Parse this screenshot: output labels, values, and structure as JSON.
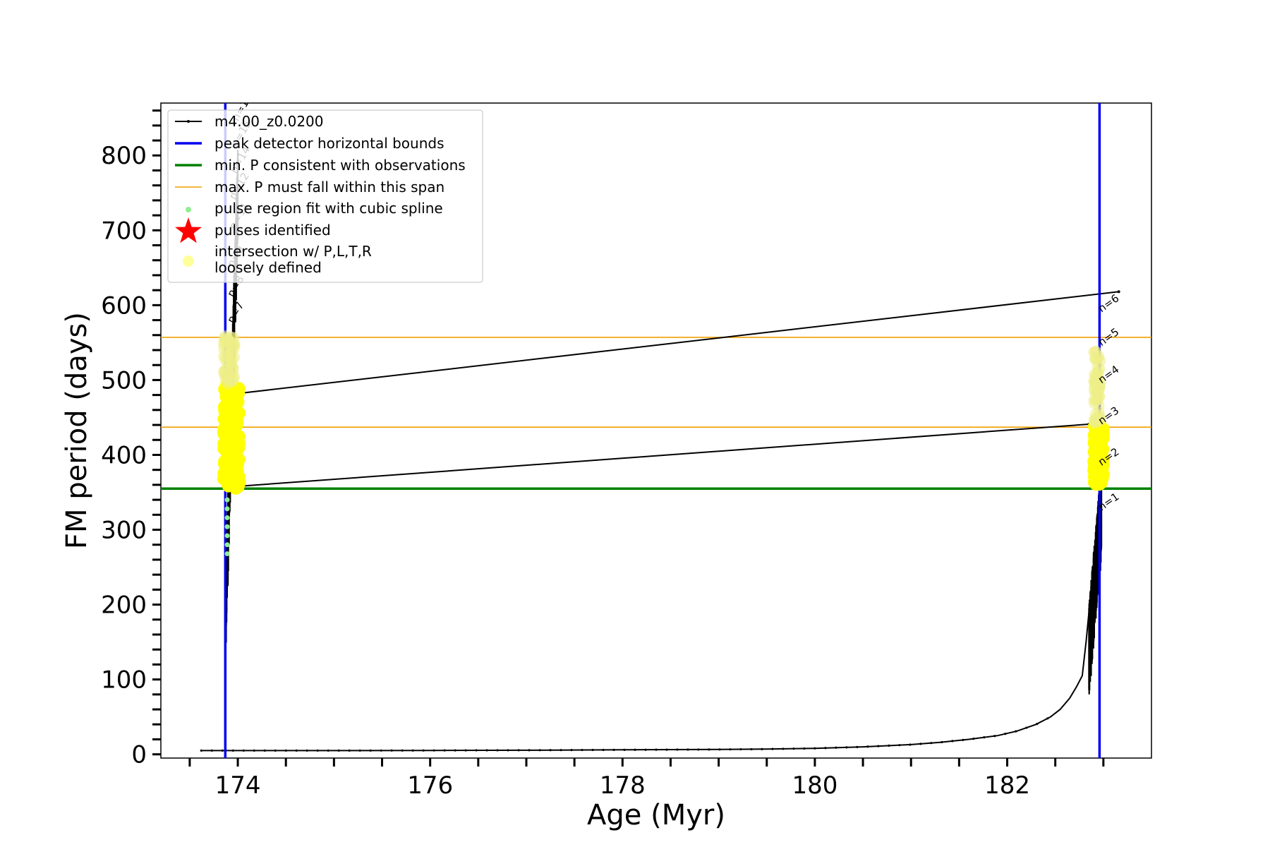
{
  "chart_data": {
    "type": "line",
    "xlabel": "Age (Myr)",
    "ylabel": "FM period (days)",
    "xlim": [
      173.2,
      183.5
    ],
    "ylim": [
      -5,
      870
    ],
    "xticks": [
      174,
      176,
      178,
      180,
      182
    ],
    "xtick_labels": [
      "174",
      "176",
      "178",
      "180",
      "182"
    ],
    "yticks": [
      0,
      100,
      200,
      300,
      400,
      500,
      600,
      700,
      800
    ],
    "ytick_labels": [
      "0",
      "100",
      "200",
      "300",
      "400",
      "500",
      "600",
      "700",
      "800"
    ],
    "legend_position": "top-left",
    "legend": [
      {
        "label": "m4.00_z0.0200",
        "marker": "line-dot",
        "color": "#000000"
      },
      {
        "label": "peak detector horizontal bounds",
        "marker": "line",
        "color": "#0000ee"
      },
      {
        "label": "min. P consistent with observations",
        "marker": "line",
        "color": "#008000"
      },
      {
        "label": "max. P must fall within this span",
        "marker": "thin-line",
        "color": "#f0a000"
      },
      {
        "label": "pulse region fit with cubic spline",
        "marker": "dot",
        "color": "#90ee90"
      },
      {
        "label": "pulses identified",
        "marker": "star",
        "color": "#ff0000"
      },
      {
        "label": "intersection w/ P,L,T,R",
        "label2": "loosely defined",
        "marker": "circle",
        "color": "#ffff99"
      }
    ],
    "series": [
      {
        "name": "m4.00_z0.0200",
        "color": "#000000",
        "x": [
          173.62,
          174.0,
          175.0,
          176.0,
          177.0,
          178.0,
          179.0,
          179.5,
          180.0,
          180.5,
          181.0,
          181.3,
          181.6,
          181.9,
          182.1,
          182.3,
          182.45,
          182.55,
          182.65,
          182.72,
          182.78,
          182.82,
          182.85
        ],
        "y": [
          5,
          5,
          5,
          5.2,
          5.5,
          6,
          6.5,
          7,
          8,
          10,
          13,
          16,
          20,
          25,
          31,
          40,
          50,
          60,
          75,
          90,
          105,
          150,
          190
        ]
      },
      {
        "name": "pulse-connectors",
        "color": "#000000",
        "segments": [
          {
            "x": [
              174.0,
              182.85
            ],
            "y": [
              358,
              441
            ]
          },
          {
            "x": [
              174.0,
              183.16
            ],
            "y": [
              482,
              618
            ]
          }
        ]
      }
    ],
    "vertical_lines": [
      {
        "x": 173.87,
        "color": "#0000ee",
        "name": "peak detector horizontal bounds"
      },
      {
        "x": 182.96,
        "color": "#0000ee",
        "name": "peak detector horizontal bounds"
      }
    ],
    "horizontal_lines": [
      {
        "y": 355,
        "color": "#008000",
        "name": "min. P consistent with observations"
      },
      {
        "y": 437,
        "color": "#f0a000",
        "name": "max. P must fall within this span"
      },
      {
        "y": 557,
        "color": "#f0a000",
        "name": "max. P must fall within this span"
      }
    ],
    "pulse_region_left": {
      "x_start": 173.87,
      "x_end": 174.0,
      "y_min": 205,
      "y_max": 780
    },
    "pulse_region_right": {
      "x_start": 182.85,
      "x_end": 182.98,
      "y_min": 170,
      "y_max": 360
    },
    "cubic_spline_points": {
      "x": 173.89,
      "y": [
        268,
        280,
        292,
        304,
        316,
        328,
        340
      ]
    },
    "yellow_left": {
      "x_range": [
        173.85,
        174.02
      ],
      "y_range": [
        355,
        495
      ],
      "loose_y_range": [
        495,
        560
      ]
    },
    "yellow_right": {
      "x_range": [
        182.9,
        183.0
      ],
      "y_range": [
        360,
        440
      ],
      "loose_y_range": [
        440,
        540
      ]
    },
    "pulse_labels_right": [
      {
        "text": "n=1",
        "x": 182.98,
        "y": 325
      },
      {
        "text": "n=2",
        "x": 182.98,
        "y": 385
      },
      {
        "text": "n=3",
        "x": 182.98,
        "y": 440
      },
      {
        "text": "n=4",
        "x": 182.98,
        "y": 495
      },
      {
        "text": "n=5",
        "x": 182.98,
        "y": 545
      },
      {
        "text": "n=6",
        "x": 182.98,
        "y": 590
      }
    ],
    "pulse_labels_left": [
      {
        "text": "n=7",
        "x": 173.95,
        "y": 575
      },
      {
        "text": "n=8",
        "x": 173.95,
        "y": 610
      },
      {
        "text": "n=9",
        "x": 173.95,
        "y": 650
      },
      {
        "text": "n=11",
        "x": 173.97,
        "y": 700
      },
      {
        "text": "n=12",
        "x": 173.97,
        "y": 740
      },
      {
        "text": "n=14",
        "x": 173.98,
        "y": 775
      },
      {
        "text": "n=15",
        "x": 173.99,
        "y": 810
      },
      {
        "text": "n=16",
        "x": 174.0,
        "y": 845
      }
    ]
  }
}
